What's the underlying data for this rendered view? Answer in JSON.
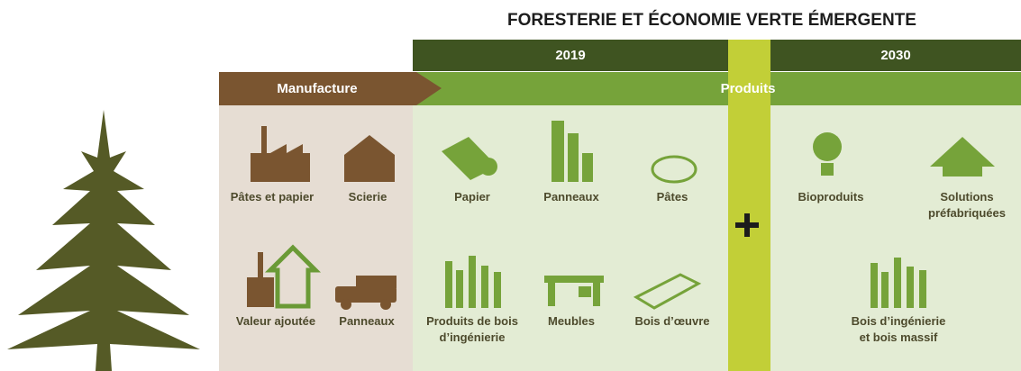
{
  "title": "FORESTERIE ET ÉCONOMIE VERTE ÉMERGENTE",
  "periods": [
    "2019",
    "2030"
  ],
  "headers": {
    "manufacture": "Manufacture",
    "products": "Produits"
  },
  "manufacture": [
    {
      "lines": [
        "Pâtes et papier"
      ]
    },
    {
      "lines": [
        "Scierie"
      ]
    },
    {
      "lines": [
        "Valeur ajoutée"
      ]
    },
    {
      "lines": [
        "Panneaux"
      ]
    }
  ],
  "products_2019": [
    {
      "lines": [
        "Papier"
      ]
    },
    {
      "lines": [
        "Panneaux"
      ]
    },
    {
      "lines": [
        "Pâtes"
      ]
    },
    {
      "lines": [
        "Produits de bois",
        "d’ingénierie"
      ]
    },
    {
      "lines": [
        "Meubles"
      ]
    },
    {
      "lines": [
        "Bois d’œuvre"
      ]
    }
  ],
  "products_2030": [
    {
      "lines": [
        "Bioproduits"
      ]
    },
    {
      "lines": [
        "Solutions",
        "préfabriquées"
      ]
    },
    {
      "lines": [
        "Bois d’ingénierie",
        "et bois massif"
      ]
    }
  ]
}
